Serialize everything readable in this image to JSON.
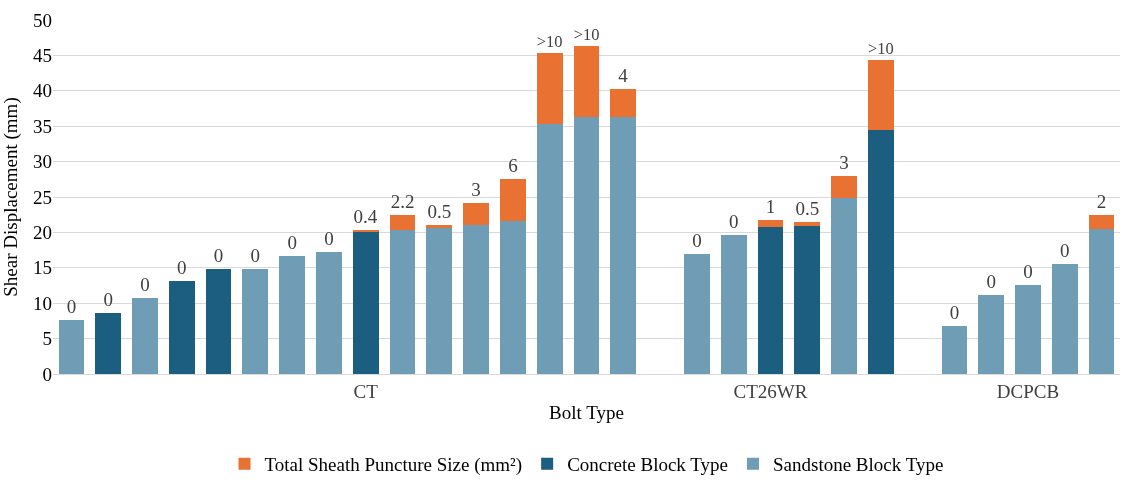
{
  "chart_data": {
    "type": "bar",
    "stacked": true,
    "xlabel": "Bolt Type",
    "ylabel": "Shear Displacement (mm)",
    "categories": [
      null,
      null,
      null,
      null,
      null,
      null,
      null,
      null,
      "CT",
      null,
      null,
      null,
      null,
      null,
      null,
      null,
      null,
      null,
      null,
      "CT26WR",
      null,
      null,
      null,
      null,
      null,
      null,
      "DCPCB",
      null,
      null
    ],
    "series": [
      {
        "name": "Concrete Block Type",
        "color": "#1b5e7f",
        "values": [
          null,
          8.6,
          null,
          13.1,
          14.9,
          null,
          null,
          null,
          20.0,
          null,
          null,
          null,
          null,
          null,
          null,
          null,
          null,
          null,
          null,
          20.8,
          20.9,
          null,
          34.4,
          null,
          null,
          null,
          null,
          null,
          null
        ]
      },
      {
        "name": "Sandstone Block Type",
        "color": "#6f9db6",
        "values": [
          7.6,
          null,
          10.7,
          null,
          null,
          14.9,
          16.6,
          17.3,
          null,
          20.3,
          20.6,
          21.1,
          21.6,
          35.3,
          36.3,
          36.3,
          null,
          17.0,
          19.7,
          null,
          null,
          24.9,
          null,
          null,
          6.8,
          11.2,
          12.6,
          15.6,
          20.5
        ]
      },
      {
        "name": "Total Sheath Puncture Size (mm²)",
        "color": "#e97132",
        "values": [
          0,
          0,
          0,
          0,
          0,
          0,
          0,
          0,
          0.4,
          2.2,
          0.5,
          3,
          6,
          10.0,
          10.0,
          4,
          null,
          0,
          0,
          1,
          0.5,
          3,
          9.9,
          null,
          0,
          0,
          0,
          0,
          2
        ],
        "value_labels": [
          "0",
          "0",
          "0",
          "0",
          "0",
          "0",
          "0",
          "0",
          "0.4",
          "2.2",
          "0.5",
          "3",
          "6",
          ">10",
          ">10",
          "4",
          null,
          "0",
          "0",
          "1",
          "0.5",
          "3",
          ">10",
          null,
          "0",
          "0",
          "0",
          "0",
          "2"
        ]
      }
    ],
    "ylim": [
      0,
      50
    ],
    "yticks": [
      0,
      5,
      10,
      15,
      20,
      25,
      30,
      35,
      40,
      45,
      50
    ],
    "grid": "y",
    "legend": "bottom"
  }
}
